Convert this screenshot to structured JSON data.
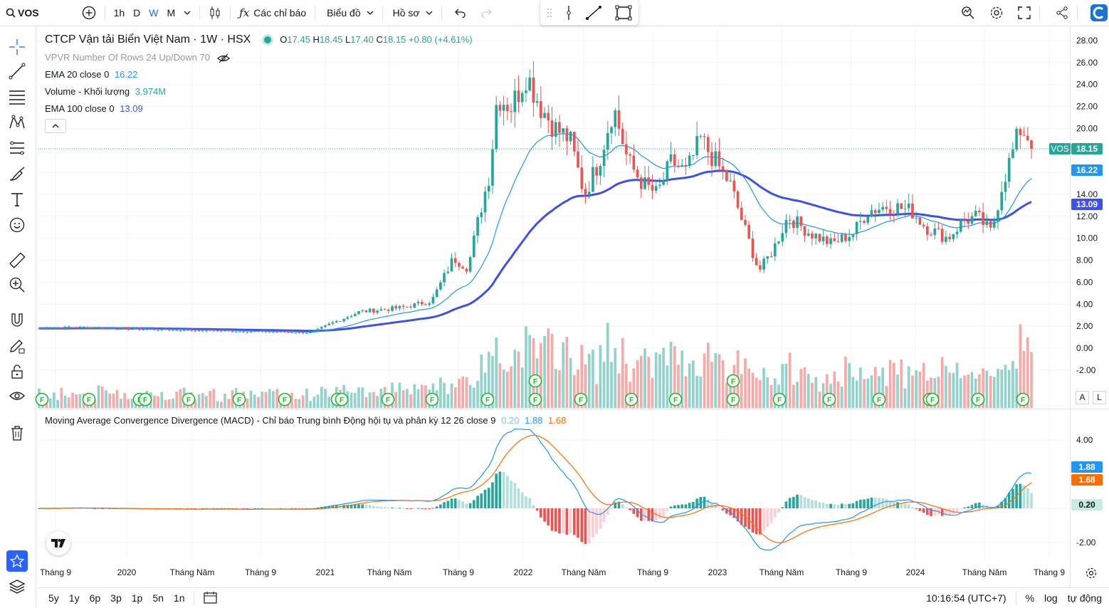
{
  "topbar": {
    "symbol": "VOS",
    "intervals": [
      "1h",
      "D",
      "W",
      "M"
    ],
    "active_interval": "W",
    "indicators_label": "Các chỉ báo",
    "chart_type_label": "Biểu đồ",
    "profile_label": "Hồ sơ"
  },
  "legend": {
    "title": "CTCP Vận tải Biển Việt Nam · 1W · HSX",
    "o_label": "O",
    "o": "17.45",
    "h_label": "H",
    "h": "18.45",
    "l_label": "L",
    "l": "17.40",
    "c_label": "C",
    "c": "18.15",
    "change": "+0.80 (+4.61%)",
    "vpvr": "VPVR Number Of Rows 24 Up/Down 70",
    "ema20_label": "EMA 20 close 0",
    "ema20_value": "16.22",
    "volume_label": "Volume - Khối lượng",
    "volume_value": "3.974M",
    "ema100_label": "EMA 100 close 0",
    "ema100_value": "13.09"
  },
  "macd_legend": {
    "label": "Moving Average Convergence Divergence (MACD) - Chỉ báo Trung bình Động hội tụ và phân kỳ 12 26 close 9",
    "hist": "0.20",
    "macd": "1.88",
    "signal": "1.68"
  },
  "price_axis": [
    "28.00",
    "26.00",
    "24.00",
    "22.00",
    "20.00",
    "18.00",
    "16.00",
    "14.00",
    "12.00",
    "10.00",
    "8.00",
    "6.00",
    "4.00",
    "2.00",
    "0.00",
    "-2.00"
  ],
  "macd_axis": [
    "4.00",
    "-2.00"
  ],
  "price_tags": {
    "ticker": "VOS",
    "last": "18.15",
    "ema20": "16.22",
    "ema100": "13.09",
    "macd": "1.88",
    "signal": "1.68",
    "hist": "0.20"
  },
  "time_axis": [
    "Tháng 9",
    "2020",
    "Tháng Năm",
    "Tháng 9",
    "2021",
    "Tháng Năm",
    "Tháng 9",
    "2022",
    "Tháng Năm",
    "Tháng 9",
    "2023",
    "Tháng Năm",
    "Tháng 9",
    "2024",
    "Tháng Năm",
    "Tháng 9"
  ],
  "scale_buttons": {
    "a": "A",
    "l": "L"
  },
  "bottombar": {
    "ranges": [
      "5y",
      "1y",
      "6p",
      "3p",
      "1p",
      "5n",
      "1n"
    ],
    "clock": "10:16:54 (UTC+7)",
    "percent": "%",
    "log": "log",
    "auto": "tự động"
  },
  "earnings_marker": "F",
  "colors": {
    "up": "#26a69a",
    "down": "#ef5350",
    "ema20": "#2196f3",
    "ema100": "#3f51e5",
    "macd": "#2196f3",
    "signal": "#ff6d00"
  }
}
